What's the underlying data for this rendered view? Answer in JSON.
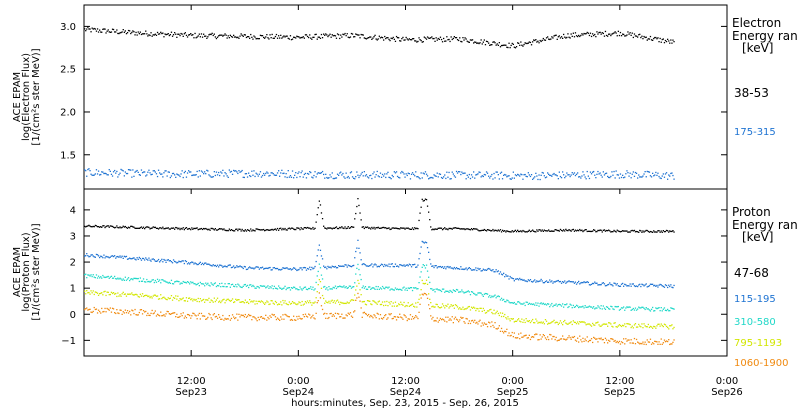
{
  "chart_data": [
    {
      "type": "scatter",
      "panel": "electron",
      "ylabel_lines": [
        "ACE EPAM",
        "log(Electron Flux)",
        "[1/(cm²s ster MeV)]"
      ],
      "ylim": [
        1.1,
        3.25
      ],
      "yticks": [
        1.5,
        2.0,
        2.5,
        3.0
      ],
      "ytick_labels": [
        "1.5",
        "2.0",
        "2.5",
        "3.0"
      ],
      "legend_title_lines": [
        "Electron",
        "Energy ran",
        "[keV]"
      ],
      "series": [
        {
          "name": "38-53",
          "color": "#000000",
          "x_hours": [
            0,
            6,
            12,
            18,
            24,
            30,
            36,
            42,
            48,
            54,
            60,
            66
          ],
          "y": [
            2.97,
            2.93,
            2.9,
            2.89,
            2.88,
            2.9,
            2.85,
            2.86,
            2.78,
            2.9,
            2.93,
            2.82
          ],
          "noise": 0.03
        },
        {
          "name": "175-315",
          "color": "#1e73d2",
          "x_hours": [
            0,
            10,
            20,
            30,
            40,
            50,
            60,
            66
          ],
          "y": [
            1.3,
            1.28,
            1.29,
            1.27,
            1.27,
            1.26,
            1.28,
            1.26
          ],
          "noise": 0.045
        }
      ]
    },
    {
      "type": "scatter",
      "panel": "proton",
      "ylabel_lines": [
        "ACE EPAM",
        "log(Proton Flux)",
        "[1/(cm²s ster MeV)]"
      ],
      "ylim": [
        -1.6,
        4.8
      ],
      "yticks": [
        -1,
        0,
        1,
        2,
        3,
        4
      ],
      "ytick_labels": [
        "−1",
        "0",
        "1",
        "2",
        "3",
        "4"
      ],
      "legend_title_lines": [
        "Proton",
        "Energy ran",
        "[keV]"
      ],
      "series": [
        {
          "name": "47-68",
          "color": "#000000",
          "x_hours": [
            0,
            6,
            12,
            18,
            24,
            30,
            36,
            42,
            48,
            54,
            60,
            66
          ],
          "y": [
            3.4,
            3.35,
            3.3,
            3.25,
            3.3,
            3.35,
            3.3,
            3.3,
            3.2,
            3.25,
            3.2,
            3.2
          ],
          "noise": 0.04
        },
        {
          "name": "115-195",
          "color": "#1e73d2",
          "x_hours": [
            0,
            6,
            12,
            18,
            24,
            30,
            36,
            42,
            46,
            48,
            54,
            60,
            66
          ],
          "y": [
            2.3,
            2.15,
            2.0,
            1.8,
            1.75,
            1.9,
            1.9,
            1.8,
            1.7,
            1.35,
            1.25,
            1.15,
            1.1
          ],
          "noise": 0.06
        },
        {
          "name": "310-580",
          "color": "#20d8c8",
          "x_hours": [
            0,
            6,
            12,
            18,
            24,
            30,
            36,
            42,
            46,
            48,
            54,
            60,
            66
          ],
          "y": [
            1.5,
            1.35,
            1.2,
            1.1,
            1.0,
            1.05,
            1.0,
            0.9,
            0.7,
            0.45,
            0.35,
            0.25,
            0.2
          ],
          "noise": 0.07
        },
        {
          "name": "795-1193",
          "color": "#d2e600",
          "x_hours": [
            0,
            6,
            12,
            18,
            24,
            30,
            36,
            42,
            46,
            48,
            54,
            60,
            66
          ],
          "y": [
            0.85,
            0.75,
            0.6,
            0.5,
            0.45,
            0.5,
            0.4,
            0.3,
            0.1,
            -0.2,
            -0.3,
            -0.4,
            -0.45
          ],
          "noise": 0.09
        },
        {
          "name": "1060-1900",
          "color": "#f08a10",
          "x_hours": [
            0,
            6,
            12,
            18,
            24,
            30,
            36,
            42,
            46,
            48,
            54,
            60,
            66
          ],
          "y": [
            0.2,
            0.1,
            -0.05,
            -0.1,
            -0.1,
            0.0,
            -0.1,
            -0.2,
            -0.4,
            -0.8,
            -0.9,
            -1.0,
            -1.05
          ],
          "noise": 0.12
        }
      ]
    }
  ],
  "xaxis": {
    "xlim_hours": [
      0,
      72
    ],
    "ticks": [
      {
        "hour": 12,
        "line1": "12:00",
        "line2": "Sep23"
      },
      {
        "hour": 24,
        "line1": "0:00",
        "line2": "Sep24"
      },
      {
        "hour": 36,
        "line1": "12:00",
        "line2": "Sep24"
      },
      {
        "hour": 48,
        "line1": "0:00",
        "line2": "Sep25"
      },
      {
        "hour": 60,
        "line1": "12:00",
        "line2": "Sep25"
      },
      {
        "hour": 72,
        "line1": "0:00",
        "line2": "Sep26"
      }
    ],
    "xlabel": "hours:minutes, Sep. 23, 2015 - Sep. 26, 2015"
  },
  "proton_spikes_hours": [
    26.3,
    30.6,
    37.8,
    38.3
  ]
}
